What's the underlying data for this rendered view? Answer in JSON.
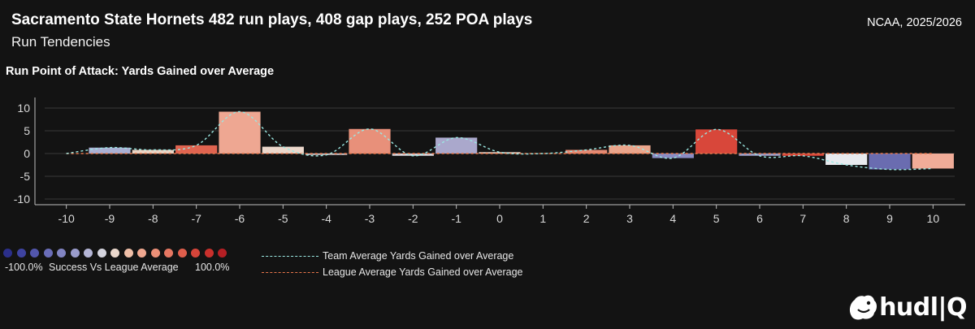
{
  "header": {
    "title": "Sacramento State Hornets 482 run plays, 408 gap plays, 252 POA plays",
    "subtitle": "Run Tendencies",
    "league_season": "NCAA, 2025/2026"
  },
  "legend": {
    "scale_min_label": "-100.0%",
    "scale_title": "Success Vs League Average",
    "scale_max_label": "100.0%",
    "scale_colors": [
      "#2b2f8a",
      "#3e43a0",
      "#5256ad",
      "#6a6db8",
      "#8184c2",
      "#9a9ccc",
      "#b5b6d6",
      "#d4d4de",
      "#ead8cc",
      "#f0bfa8",
      "#f0a890",
      "#ec9078",
      "#e67762",
      "#df5e4c",
      "#d6453a",
      "#c9302c",
      "#b51f24"
    ],
    "team_line_label": "Team Average Yards Gained over Average",
    "league_line_label": "League Average Yards Gained over Average",
    "team_line_color": "#9be8e2",
    "league_line_color": "#e8764a"
  },
  "chart_data": {
    "type": "bar",
    "title": "Run Point of Attack: Yards Gained over Average",
    "xlabel": "",
    "ylabel": "",
    "x": [
      -10,
      -9,
      -8,
      -7,
      -6,
      -5,
      -4,
      -3,
      -2,
      -1,
      0,
      1,
      2,
      3,
      4,
      5,
      6,
      7,
      8,
      9,
      10
    ],
    "ylim": [
      -10,
      10
    ],
    "yticks": [
      10,
      5,
      0,
      -5,
      -10
    ],
    "grid": "horizontal",
    "bars": [
      {
        "x": -9,
        "value": 1.3,
        "color": "#aab0d4"
      },
      {
        "x": -8,
        "value": 0.8,
        "color": "#ecd4c4"
      },
      {
        "x": -7,
        "value": 1.8,
        "color": "#e06450"
      },
      {
        "x": -6,
        "value": 9.2,
        "color": "#eea792"
      },
      {
        "x": -5,
        "value": 1.5,
        "color": "#ecd8cc"
      },
      {
        "x": -4,
        "value": -0.3,
        "color": "#d8d4da"
      },
      {
        "x": -3,
        "value": 5.4,
        "color": "#e8907a"
      },
      {
        "x": -2,
        "value": -0.5,
        "color": "#d8d4da"
      },
      {
        "x": -1,
        "value": 3.5,
        "color": "#aaa8cc"
      },
      {
        "x": 0,
        "value": 0.3,
        "color": "#ead4c8"
      },
      {
        "x": 2,
        "value": 0.8,
        "color": "#e58a74"
      },
      {
        "x": 3,
        "value": 1.8,
        "color": "#eba68c"
      },
      {
        "x": 4,
        "value": -1.0,
        "color": "#8a8cc4"
      },
      {
        "x": 5,
        "value": 5.3,
        "color": "#d8473a"
      },
      {
        "x": 6,
        "value": -0.5,
        "color": "#9c9ec8"
      },
      {
        "x": 7,
        "value": -0.5,
        "color": "#d8463a"
      },
      {
        "x": 8,
        "value": -2.5,
        "color": "#e8eaee"
      },
      {
        "x": 9,
        "value": -3.5,
        "color": "#6a6cb0"
      },
      {
        "x": 10,
        "value": -3.3,
        "color": "#f0ac98"
      }
    ],
    "team_average_line": [
      [
        -10,
        0.0
      ],
      [
        -9,
        1.3
      ],
      [
        -8,
        0.8
      ],
      [
        -7,
        1.8
      ],
      [
        -6,
        9.2
      ],
      [
        -5,
        1.5
      ],
      [
        -4,
        -0.3
      ],
      [
        -3,
        5.4
      ],
      [
        -2,
        -0.5
      ],
      [
        -1,
        3.5
      ],
      [
        0,
        0.3
      ],
      [
        1,
        0.0
      ],
      [
        2,
        0.8
      ],
      [
        3,
        1.8
      ],
      [
        4,
        -1.0
      ],
      [
        5,
        5.3
      ],
      [
        6,
        -0.5
      ],
      [
        7,
        -0.5
      ],
      [
        8,
        -2.5
      ],
      [
        9,
        -3.5
      ],
      [
        10,
        -3.3
      ]
    ],
    "league_average_line": [
      [
        -10,
        0
      ],
      [
        10,
        0
      ]
    ]
  }
}
